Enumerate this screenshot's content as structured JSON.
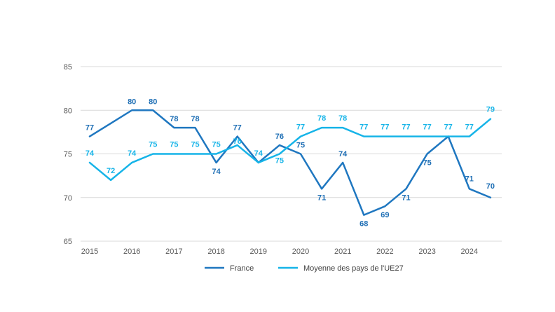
{
  "chart_data": {
    "type": "line",
    "title": "",
    "xlabel": "",
    "ylabel": "",
    "ylim": [
      65,
      85
    ],
    "yticks": [
      "65",
      "70",
      "75",
      "80",
      "85"
    ],
    "grid": true,
    "legend_position": "bottom",
    "x_tick_labels": [
      "2015",
      "2016",
      "2017",
      "2018",
      "2019",
      "2020",
      "2021",
      "2022",
      "2023",
      "2024"
    ],
    "x": [
      2015,
      2015.5,
      2016,
      2016.5,
      2017,
      2017.5,
      2018,
      2018.5,
      2019,
      2019.5,
      2020,
      2020.5,
      2021,
      2021.5,
      2022,
      2022.5,
      2023,
      2023.5,
      2024,
      2024.5
    ],
    "series": [
      {
        "name": "France",
        "color": "#1f77c0",
        "values": [
          77,
          78.5,
          80,
          80,
          78,
          78,
          74,
          77,
          74,
          76,
          75,
          71,
          74,
          68,
          69,
          71,
          75,
          77,
          71,
          70
        ],
        "labels": [
          "77",
          "",
          "80",
          "80",
          "78",
          "78",
          "74",
          "77",
          "",
          "76",
          "75",
          "71",
          "74",
          "68",
          "69",
          "71",
          "75",
          "",
          "71",
          "70"
        ]
      },
      {
        "name": "Moyenne des pays de l'UE27",
        "color": "#16b4e8",
        "values": [
          74,
          72,
          74,
          75,
          75,
          75,
          75,
          76,
          74,
          75,
          77,
          78,
          78,
          77,
          77,
          77,
          77,
          77,
          77,
          79
        ],
        "labels": [
          "74",
          "72",
          "74",
          "75",
          "75",
          "75",
          "75",
          "76",
          "74",
          "75",
          "77",
          "78",
          "78",
          "77",
          "77",
          "77",
          "77",
          "77",
          "77",
          "79"
        ]
      }
    ]
  }
}
